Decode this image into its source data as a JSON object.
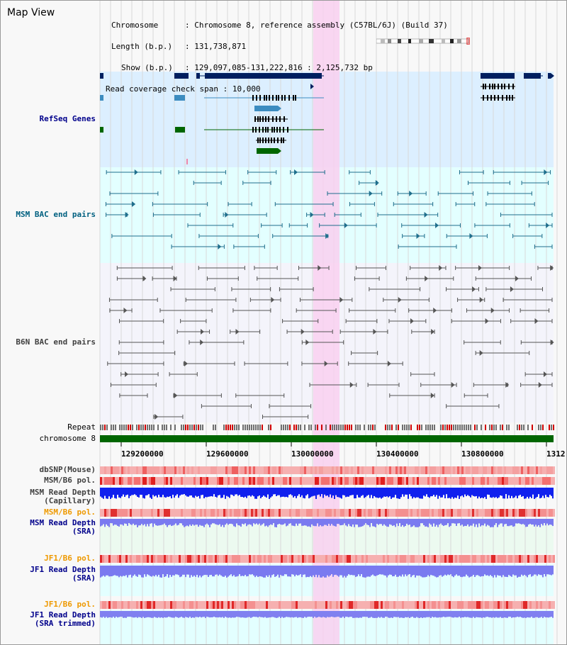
{
  "window": {
    "title": "Map View"
  },
  "info": {
    "chromosome": {
      "key": "Chromosome",
      "value": ": Chromosome 8, reference assembly (C57BL/6J) (Build 37)"
    },
    "length": {
      "key": "Length (b.p.)",
      "value": ": 131,738,871"
    },
    "show": {
      "key": "Show (b.p.)",
      "value": ": 129,097,085-131,222,816 : 2,125,732 bp"
    },
    "coverage": {
      "key": "Read coverage check span",
      "value": ": 10,000"
    }
  },
  "axis": {
    "ticks": [
      "129200000",
      "129600000",
      "130000000",
      "130400000",
      "130800000",
      "1312"
    ]
  },
  "tracks": {
    "refseq": {
      "label": "RefSeq Genes"
    },
    "msm_bac": {
      "label": "MSM BAC end pairs"
    },
    "b6n_bac": {
      "label": "B6N BAC end pairs"
    },
    "repeat": {
      "label": "Repeat"
    },
    "chromosome": {
      "label": "chromosome 8"
    },
    "dbsnp": {
      "label": "dbSNP(Mouse)"
    },
    "msm_b6_pol_1": {
      "label": "MSM/B6 pol."
    },
    "msm_read_depth_cap": {
      "label": "MSM Read Depth",
      "sub": "(Capillary)"
    },
    "msm_b6_pol_2": {
      "label": "MSM/B6 pol."
    },
    "msm_read_depth_sra": {
      "label": "MSM Read Depth",
      "sub": "(SRA)"
    },
    "jf1_b6_pol_1": {
      "label": "JF1/B6 pol."
    },
    "jf1_read_depth_sra": {
      "label": "JF1 Read Depth",
      "sub": "(SRA)"
    },
    "jf1_b6_pol_2": {
      "label": "JF1/B6 pol."
    },
    "jf1_read_depth_trim": {
      "label": "JF1 Read Depth",
      "sub": "(SRA trimmed)"
    }
  },
  "colors": {
    "refseq_bg": "#dcefff",
    "msm_bac_bg": "#e3ffff",
    "highlight": "#f9d0f0",
    "label_navy": "#00008b",
    "label_teal": "#006080",
    "label_gray": "#404040",
    "label_orange": "#ee9900",
    "gene_dark": "#001f5f",
    "gene_mid": "#3c8cc0",
    "gene_green": "#006600"
  }
}
